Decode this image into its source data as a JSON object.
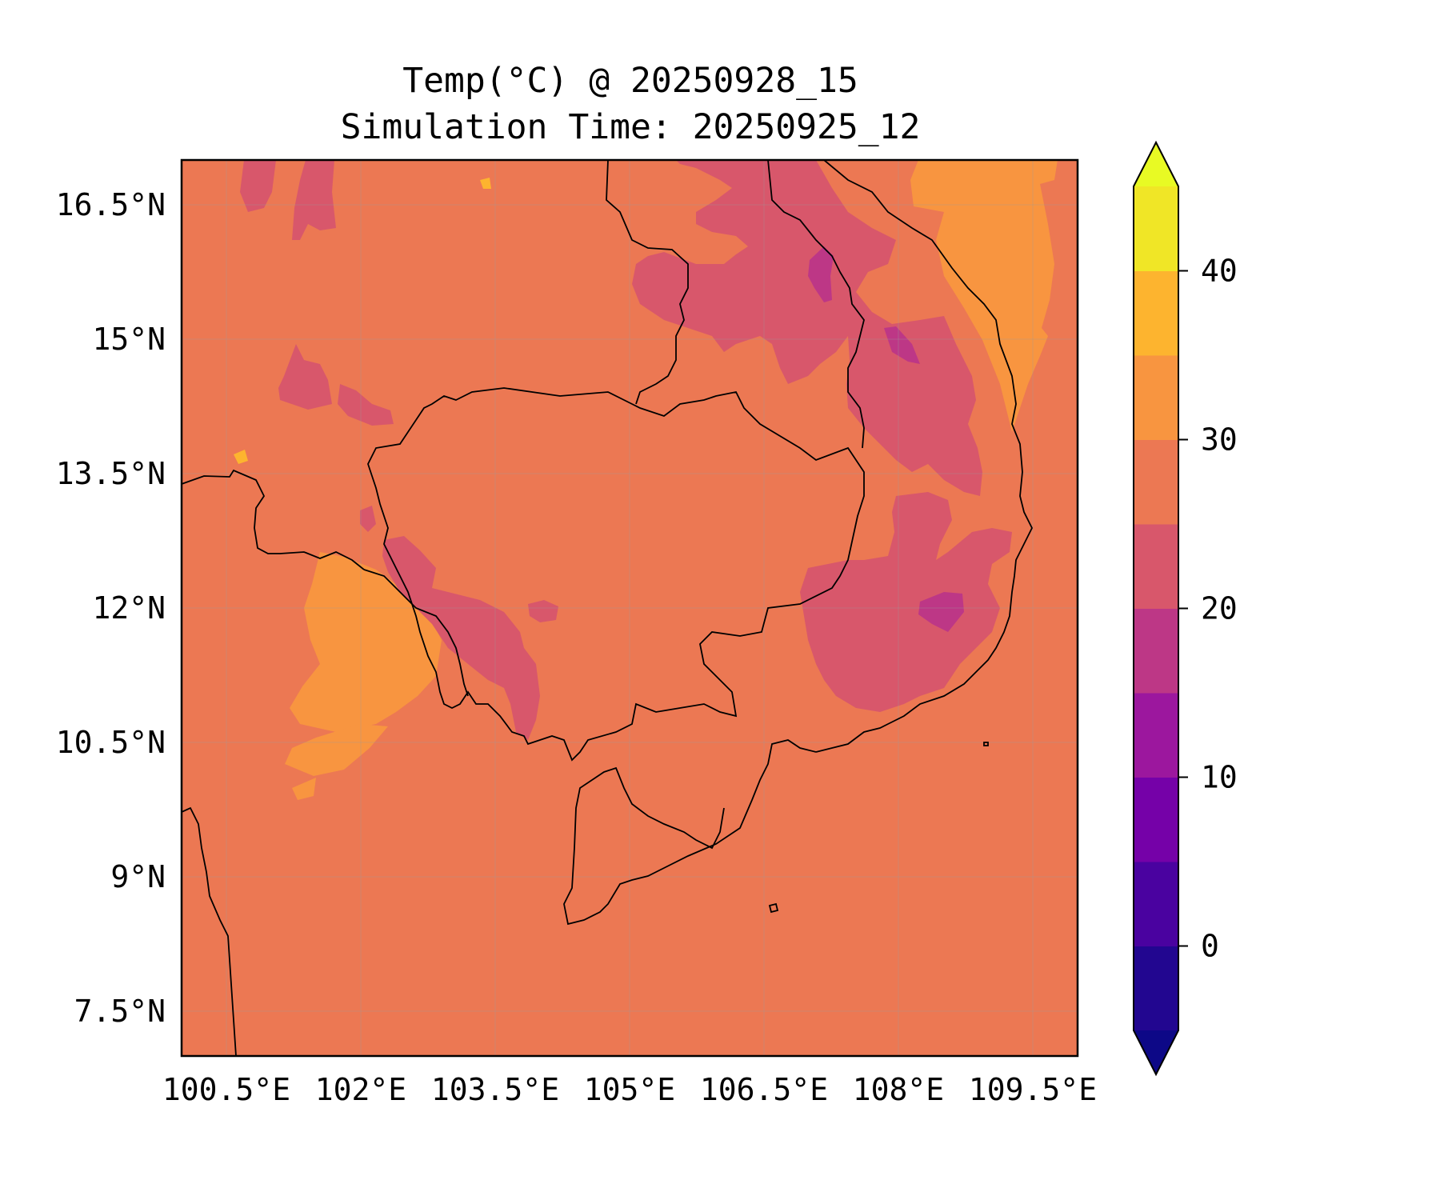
{
  "title": {
    "line1": "Temp(°C) @ 20250928_15",
    "line2": "Simulation Time: 20250925_12"
  },
  "chart_data": {
    "type": "filled-contour-map",
    "variable": "Temp(°C)",
    "valid_time": "20250928_15",
    "simulation_time": "20250925_12",
    "xlim": [
      100.0,
      110.0
    ],
    "ylim": [
      7.0,
      17.0
    ],
    "x_ticks": [
      {
        "value": 100.5,
        "label": "100.5°E"
      },
      {
        "value": 102.0,
        "label": "102°E"
      },
      {
        "value": 103.5,
        "label": "103.5°E"
      },
      {
        "value": 105.0,
        "label": "105°E"
      },
      {
        "value": 106.5,
        "label": "106.5°E"
      },
      {
        "value": 108.0,
        "label": "108°E"
      },
      {
        "value": 109.5,
        "label": "109.5°E"
      }
    ],
    "y_ticks": [
      {
        "value": 16.5,
        "label": "16.5°N"
      },
      {
        "value": 15.0,
        "label": "15°N"
      },
      {
        "value": 13.5,
        "label": "13.5°N"
      },
      {
        "value": 12.0,
        "label": "12°N"
      },
      {
        "value": 10.5,
        "label": "10.5°N"
      },
      {
        "value": 9.0,
        "label": "9°N"
      },
      {
        "value": 7.5,
        "label": "7.5°N"
      }
    ],
    "grid": true,
    "colormap": "plasma",
    "colorbar": {
      "orientation": "vertical",
      "placement": "right",
      "extend": "both",
      "levels": [
        -5,
        0,
        5,
        10,
        15,
        20,
        25,
        30,
        35,
        40,
        45
      ],
      "colors": [
        "#220690",
        "#4a02a0",
        "#7501a8",
        "#9c179e",
        "#bd3786",
        "#d8576b",
        "#ec7853",
        "#f89540",
        "#fdb42f",
        "#f0e626"
      ],
      "under_color": "#0d0887",
      "over_color": "#e8fa24",
      "tick_values": [
        0,
        10,
        20,
        30,
        40
      ],
      "tick_labels": [
        "0",
        "10",
        "20",
        "30",
        "40"
      ]
    },
    "background_band": "25–30",
    "regions": [
      {
        "band": "20–25",
        "area": "central Laos / northern Vietnam highlands"
      },
      {
        "band": "15–20",
        "area": "Laos–Vietnam border near 16°N"
      },
      {
        "band": "20–25",
        "area": "Central Highlands of Vietnam"
      },
      {
        "band": "15–20",
        "area": "Central Highlands pocket near 12°N"
      },
      {
        "band": "20–25",
        "area": "Cardamom Mountains, Cambodia"
      },
      {
        "band": "20–25",
        "area": "northern Thailand patches"
      },
      {
        "band": "30–35",
        "area": "Gulf of Thailand"
      },
      {
        "band": "30–35",
        "area": "South China Sea off central Vietnam"
      },
      {
        "band": "35–40",
        "area": "small spots"
      }
    ]
  }
}
